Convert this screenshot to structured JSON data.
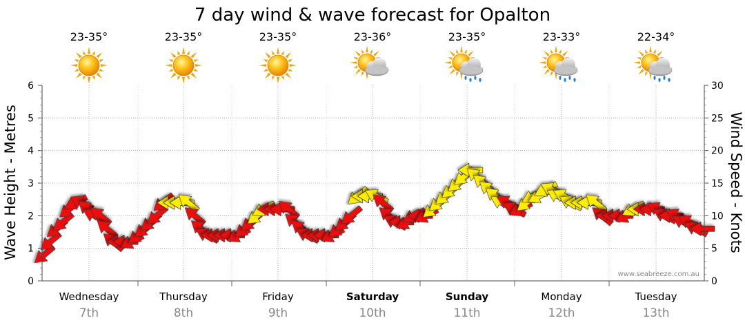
{
  "chart_data": {
    "type": "line",
    "title": "7 day wind & wave forecast for Opalton",
    "ylabel_left": "Wave Height - Metres",
    "ylabel_right": "Wind Speed - Knots",
    "y_left_ticks": [
      "0",
      "1",
      "2",
      "3",
      "4",
      "5",
      "6"
    ],
    "y_right_ticks": [
      "0",
      "5",
      "10",
      "15",
      "20",
      "25",
      "30"
    ],
    "y_left_range": [
      0,
      6
    ],
    "y_right_range": [
      0,
      30
    ],
    "watermark": "www.seabreeze.com.au",
    "days": [
      {
        "name": "Wednesday",
        "date": "7th",
        "temp": "23-35°",
        "weather": "sunny",
        "bold": false
      },
      {
        "name": "Thursday",
        "date": "8th",
        "temp": "23-35°",
        "weather": "sunny",
        "bold": false
      },
      {
        "name": "Friday",
        "date": "9th",
        "temp": "23-35°",
        "weather": "sunny",
        "bold": false
      },
      {
        "name": "Saturday",
        "date": "10th",
        "temp": "23-36°",
        "weather": "partly-cloudy",
        "bold": true
      },
      {
        "name": "Sunday",
        "date": "11th",
        "temp": "23-35°",
        "weather": "showers",
        "bold": true
      },
      {
        "name": "Monday",
        "date": "12th",
        "temp": "23-33°",
        "weather": "showers",
        "bold": false
      },
      {
        "name": "Tuesday",
        "date": "13th",
        "temp": "22-34°",
        "weather": "showers",
        "bold": false
      }
    ],
    "wind_speed_knots": [
      4,
      6,
      8,
      9,
      11,
      12,
      12,
      11,
      10,
      10,
      8,
      6,
      6,
      6,
      6,
      7,
      8,
      9,
      10,
      12,
      12,
      12,
      12,
      12,
      10,
      8,
      7,
      7,
      7,
      7,
      7,
      7,
      8,
      9,
      10,
      11,
      11,
      11,
      11,
      11,
      9,
      8,
      7,
      7,
      7,
      7,
      7,
      8,
      9,
      10,
      13,
      13,
      13,
      13,
      12,
      10,
      9,
      9,
      9,
      10,
      10,
      10,
      11,
      12,
      13,
      14,
      15,
      16,
      17,
      16,
      15,
      14,
      13,
      12,
      12,
      11,
      11,
      12,
      13,
      13,
      14,
      14,
      13,
      13,
      12,
      12,
      12,
      12,
      12,
      10,
      10,
      10,
      10,
      10,
      11,
      11,
      11,
      11,
      11,
      10,
      10,
      10,
      9,
      9,
      8,
      8
    ],
    "wind_color": [
      "red",
      "red",
      "red",
      "red",
      "red",
      "red",
      "red",
      "red",
      "red",
      "red",
      "red",
      "red",
      "red",
      "red",
      "red",
      "red",
      "red",
      "red",
      "red",
      "red",
      "yellow",
      "yellow",
      "yellow",
      "yellow",
      "red",
      "red",
      "red",
      "red",
      "red",
      "red",
      "red",
      "red",
      "red",
      "red",
      "yellow",
      "yellow",
      "red",
      "red",
      "red",
      "red",
      "red",
      "red",
      "red",
      "red",
      "red",
      "red",
      "red",
      "red",
      "red",
      "red",
      "yellow",
      "yellow",
      "yellow",
      "yellow",
      "red",
      "red",
      "red",
      "red",
      "red",
      "red",
      "red",
      "red",
      "yellow",
      "yellow",
      "yellow",
      "yellow",
      "yellow",
      "yellow",
      "yellow",
      "yellow",
      "yellow",
      "yellow",
      "yellow",
      "yellow",
      "red",
      "red",
      "red",
      "yellow",
      "yellow",
      "yellow",
      "yellow",
      "yellow",
      "yellow",
      "yellow",
      "yellow",
      "yellow",
      "yellow",
      "yellow",
      "yellow",
      "red",
      "red",
      "red",
      "red",
      "red",
      "yellow",
      "yellow",
      "red",
      "red",
      "red",
      "red",
      "red",
      "red",
      "red",
      "red",
      "red",
      "red",
      "red",
      "red"
    ],
    "colors": {
      "red": "#ee1111",
      "yellow": "#ffee00",
      "grid": "#999999"
    }
  }
}
